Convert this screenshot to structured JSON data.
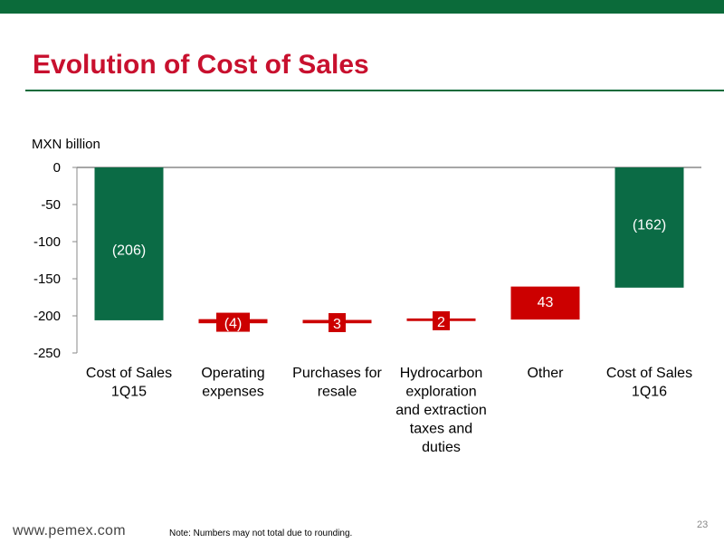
{
  "slide": {
    "title": "Evolution of Cost of Sales",
    "footer_url": "www.pemex.com",
    "footer_note": "Note: Numbers may not total due to rounding.",
    "page_number": "23"
  },
  "colors": {
    "brand_green": "#0b6b3a",
    "brand_red": "#c8102e",
    "bar_green": "#0b6b45",
    "bar_red": "#cc0000"
  },
  "chart_data": {
    "type": "bar",
    "subtype": "waterfall",
    "ylabel": "MXN billion",
    "ylim": [
      -250,
      0
    ],
    "yticks": [
      "0",
      "-50",
      "-100",
      "-150",
      "-200",
      "-250"
    ],
    "ytick_values": [
      0,
      -50,
      -100,
      -150,
      -200,
      -250
    ],
    "categories": [
      [
        "Cost of Sales",
        "1Q15"
      ],
      [
        "Operating",
        "expenses"
      ],
      [
        "Purchases for",
        "resale"
      ],
      [
        "Hydrocarbon",
        "exploration",
        "and extraction",
        "taxes and",
        "duties"
      ],
      [
        "Other"
      ],
      [
        "Cost of Sales",
        "1Q16"
      ]
    ],
    "bars": [
      {
        "kind": "total",
        "start": 0,
        "end": -206,
        "label": "(206)",
        "color": "#0b6b45"
      },
      {
        "kind": "delta",
        "start": -206,
        "end": -210,
        "label": "(4)",
        "color": "#cc0000"
      },
      {
        "kind": "delta",
        "start": -210,
        "end": -207,
        "label": "3",
        "color": "#cc0000"
      },
      {
        "kind": "delta",
        "start": -207,
        "end": -205,
        "label": "2",
        "color": "#cc0000"
      },
      {
        "kind": "delta",
        "start": -205,
        "end": -162,
        "label": "43",
        "color": "#cc0000"
      },
      {
        "kind": "total",
        "start": 0,
        "end": -162,
        "label": "(162)",
        "color": "#0b6b45"
      }
    ],
    "grid": false,
    "legend": "none"
  }
}
